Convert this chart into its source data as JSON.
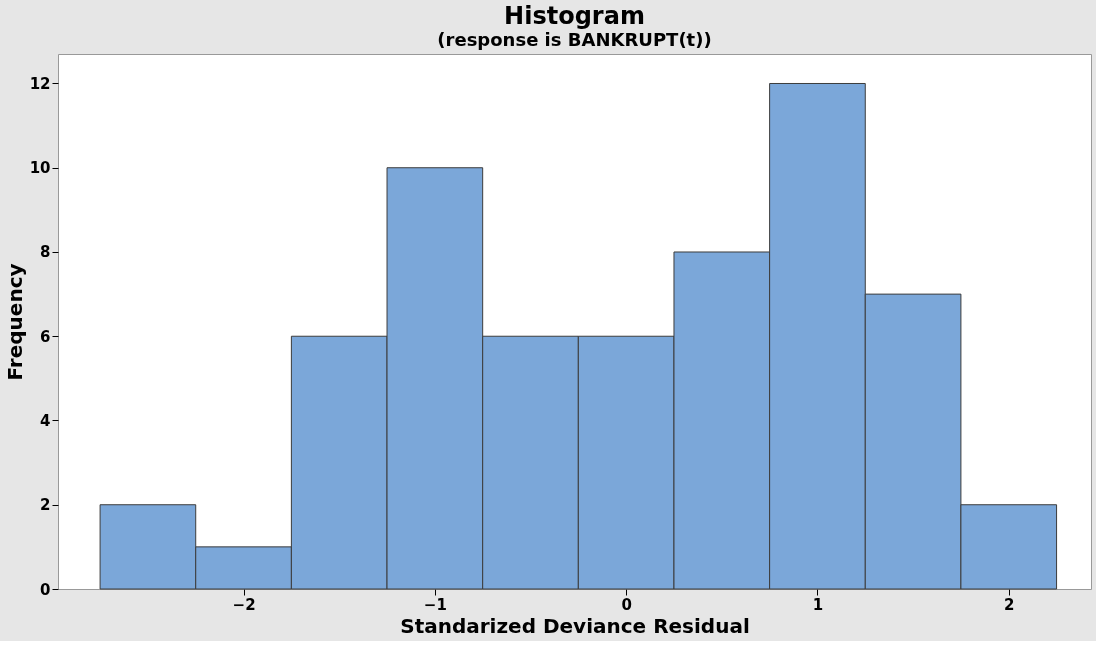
{
  "chart_data": {
    "type": "histogram",
    "title": "Histogram",
    "subtitle": "(response is BANKRUPT(t))",
    "xlabel": "Standarized Deviance Residual",
    "ylabel": "Frequency",
    "bins": [
      -2.75,
      -2.25,
      -1.75,
      -1.25,
      -0.75,
      -0.25,
      0.25,
      0.75,
      1.25,
      1.75,
      2.25
    ],
    "values": [
      2,
      1,
      6,
      10,
      6,
      6,
      8,
      12,
      7,
      2
    ],
    "color": "#7ba7d9",
    "xlim": [
      -2.97,
      2.43
    ],
    "xticks": [
      -2,
      -1,
      0,
      1,
      2
    ],
    "ylim": [
      0,
      12.7
    ],
    "yticks": [
      0,
      2,
      4,
      6,
      8,
      10,
      12
    ],
    "grid": false
  }
}
